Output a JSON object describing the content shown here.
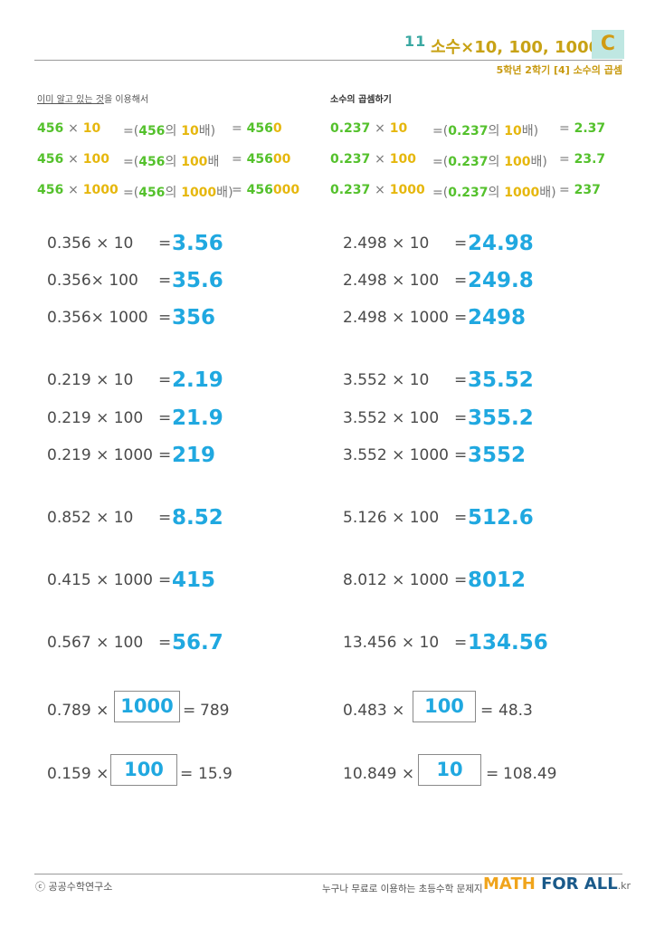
{
  "header": {
    "lesson_number": "11",
    "title": "소수×10, 100, 1000",
    "level_badge": "C",
    "subtitle": "5학년 2학기 [4] 소수의 곱셈"
  },
  "examples": {
    "left_heading_prefix": "이미 알고 있는 것",
    "left_heading_suffix": "을 이용해서",
    "right_heading": "소수의 곱셈하기",
    "left": [
      {
        "base": "456",
        "times": "×",
        "mult": "10",
        "eq1": "=",
        "open": "(",
        "base2": "456",
        "ui": "의",
        "mult2": "10",
        "bae": "배",
        "close": ")",
        "eq2": "=",
        "res_g": "456",
        "res_y": "0"
      },
      {
        "base": "456",
        "times": "×",
        "mult": "100",
        "eq1": "=",
        "open": "(",
        "base2": "456",
        "ui": "의",
        "mult2": "100",
        "bae": "배",
        "close": "",
        "eq2": "=",
        "res_g": "456",
        "res_y": "00"
      },
      {
        "base": "456",
        "times": "×",
        "mult": "1000",
        "eq1": "=",
        "open": "(",
        "base2": "456",
        "ui": "의",
        "mult2": "1000",
        "bae": "배",
        "close": ")",
        "eq2": "=",
        "res_g": "456",
        "res_y": "000"
      }
    ],
    "right": [
      {
        "base": "0.237",
        "times": "×",
        "mult": "10",
        "eq1": "=",
        "open": "(",
        "base2": "0.237",
        "ui": "의",
        "mult2": "10",
        "bae": "배",
        "close": ")",
        "eq2": "=",
        "res": "2.37"
      },
      {
        "base": "0.237",
        "times": "×",
        "mult": "100",
        "eq1": "=",
        "open": "(",
        "base2": "0.237",
        "ui": "의",
        "mult2": "100",
        "bae": "배",
        "close": ")",
        "eq2": "=",
        "res": "23.7"
      },
      {
        "base": "0.237",
        "times": "×",
        "mult": "1000",
        "eq1": "=",
        "open": "(",
        "base2": "0.237",
        "ui": "의",
        "mult2": "1000",
        "bae": "배",
        "close": ")",
        "eq2": "=",
        "res": "237"
      }
    ]
  },
  "problems": {
    "left": [
      {
        "expr": "0.356 × 10",
        "eq": "=",
        "answer": "3.56"
      },
      {
        "expr": "0.356× 100",
        "eq": "=",
        "answer": "35.6"
      },
      {
        "expr": "0.356× 1000",
        "eq": "=",
        "answer": "356"
      },
      {
        "expr": "0.219 × 10",
        "eq": "=",
        "answer": "2.19"
      },
      {
        "expr": "0.219 × 100",
        "eq": "=",
        "answer": "21.9"
      },
      {
        "expr": "0.219 × 1000",
        "eq": "=",
        "answer": "219"
      },
      {
        "expr": "0.852 × 10",
        "eq": "=",
        "answer": "8.52"
      },
      {
        "expr": "0.415 × 1000",
        "eq": "=",
        "answer": "415"
      },
      {
        "expr": "0.567 × 100",
        "eq": "=",
        "answer": "56.7"
      }
    ],
    "right": [
      {
        "expr": "2.498 × 10",
        "eq": "=",
        "answer": "24.98"
      },
      {
        "expr": "2.498 × 100",
        "eq": "=",
        "answer": "249.8"
      },
      {
        "expr": "2.498 × 1000",
        "eq": "=",
        "answer": "2498"
      },
      {
        "expr": "3.552 × 10",
        "eq": "=",
        "answer": "35.52"
      },
      {
        "expr": "3.552 × 100",
        "eq": "=",
        "answer": "355.2"
      },
      {
        "expr": "3.552 × 1000",
        "eq": "=",
        "answer": "3552"
      },
      {
        "expr": "5.126 × 100",
        "eq": "=",
        "answer": "512.6"
      },
      {
        "expr": "8.012 × 1000",
        "eq": "=",
        "answer": "8012"
      },
      {
        "expr": "13.456 × 10",
        "eq": "=",
        "answer": "134.56"
      }
    ]
  },
  "boxed": {
    "left": [
      {
        "expr": "0.789 ×",
        "box": "1000",
        "eq": "=",
        "result": "789"
      },
      {
        "expr": "0.159 ×",
        "box": "100",
        "eq": "=",
        "result": "15.9"
      }
    ],
    "right": [
      {
        "expr": "0.483 ×",
        "box": "100",
        "eq": "=",
        "result": "48.3"
      },
      {
        "expr": "10.849 ×",
        "box": "10",
        "eq": "=",
        "result": "108.49"
      }
    ]
  },
  "footer": {
    "copyright": "ⓒ 공공수학연구소",
    "tagline": "누구나 무료로 이용하는 초등수학 문제지",
    "brand_math": "MATH",
    "brand_forall": "FOR ALL",
    "brand_kr": ".kr"
  },
  "colors": {
    "accent_green": "#54c12c",
    "accent_yellow": "#e6b70d",
    "answer_blue": "#20a8e0",
    "badge_bg": "#bfe7e2"
  }
}
